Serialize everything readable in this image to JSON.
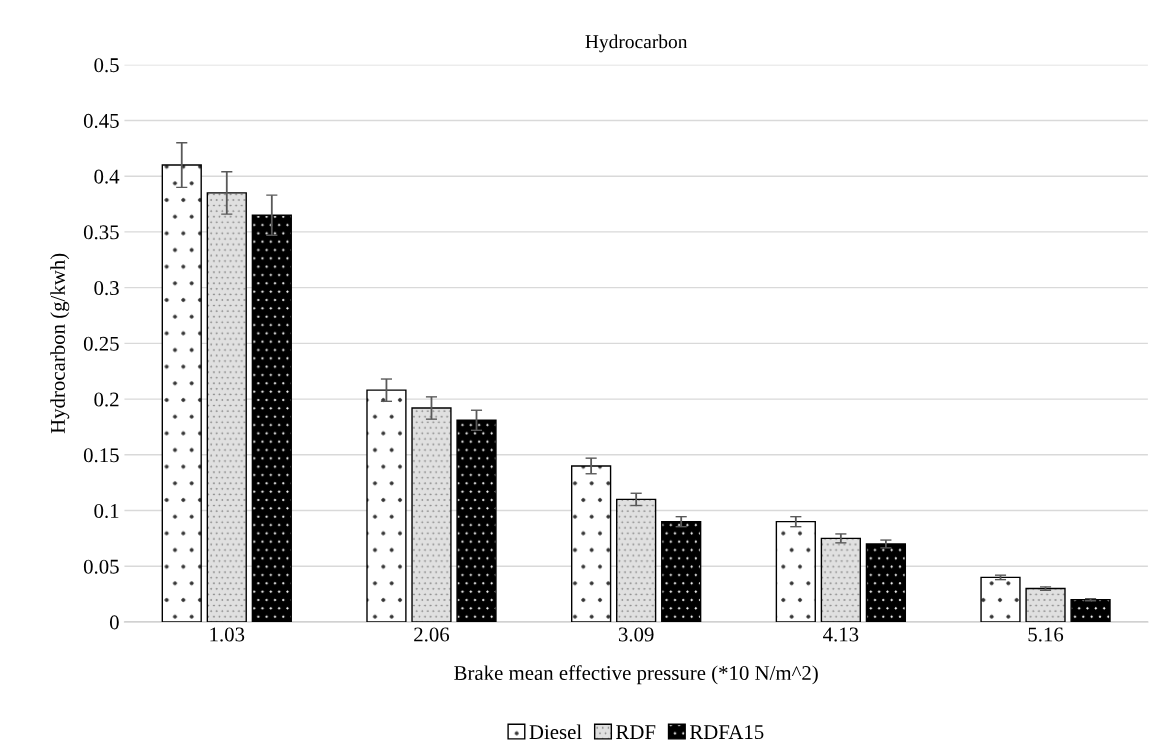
{
  "chart_data": {
    "type": "bar",
    "title": "Hydrocarbon",
    "xlabel": "Brake mean effective pressure (*10 N/m^2)",
    "ylabel": "Hydrocarbon (g/kwh)",
    "categories": [
      "1.03",
      "2.06",
      "3.09",
      "4.13",
      "5.16"
    ],
    "series": [
      {
        "name": "Diesel",
        "color": "#ffffff",
        "values": [
          0.41,
          0.208,
          0.14,
          0.09,
          0.04
        ],
        "errors": [
          0.02,
          0.01,
          0.007,
          0.0045,
          0.002
        ]
      },
      {
        "name": "RDF",
        "color": "#e0e0e0",
        "values": [
          0.385,
          0.192,
          0.11,
          0.075,
          0.03
        ],
        "errors": [
          0.019,
          0.01,
          0.0055,
          0.004,
          0.0015
        ]
      },
      {
        "name": "RDFA15",
        "color": "#000000",
        "values": [
          0.365,
          0.181,
          0.09,
          0.07,
          0.02
        ],
        "errors": [
          0.018,
          0.009,
          0.0045,
          0.0035,
          0.001
        ]
      }
    ],
    "ylim": [
      0,
      0.5
    ],
    "yticks": [
      0,
      0.05,
      0.1,
      0.15,
      0.2,
      0.25,
      0.3,
      0.35,
      0.4,
      0.45,
      0.5
    ],
    "grid": "y",
    "legend": "bottom"
  }
}
